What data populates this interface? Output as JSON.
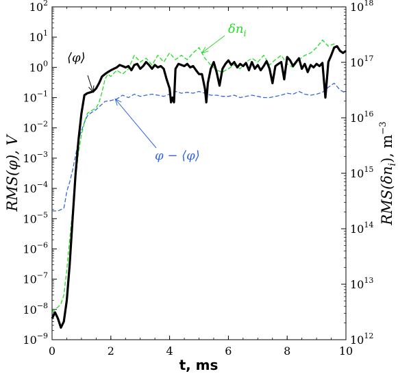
{
  "chart_data": {
    "type": "line",
    "xlabel": "t, ms",
    "ylabel_left": "RMS(φ), V",
    "ylabel_right": "RMS(δn",
    "ylabel_right_sub": "i",
    "ylabel_right_tail": "), m",
    "ylabel_right_unit_exp": "−3",
    "xlim": [
      0,
      10
    ],
    "ylim_left": [
      1e-09,
      100
    ],
    "ylim_right": [
      1000000000000.0,
      1e+18
    ],
    "y_scale": "log",
    "grid": false,
    "x_ticks": [
      "0",
      "2",
      "4",
      "6",
      "8",
      "10"
    ],
    "y_left_ticks": [
      {
        "base": "10",
        "exp": "2"
      },
      {
        "base": "10",
        "exp": "1"
      },
      {
        "base": "10",
        "exp": "0"
      },
      {
        "base": "10",
        "exp": "-1"
      },
      {
        "base": "10",
        "exp": "-2"
      },
      {
        "base": "10",
        "exp": "-3"
      },
      {
        "base": "10",
        "exp": "-4"
      },
      {
        "base": "10",
        "exp": "-5"
      },
      {
        "base": "10",
        "exp": "-6"
      },
      {
        "base": "10",
        "exp": "-7"
      },
      {
        "base": "10",
        "exp": "-8"
      },
      {
        "base": "10",
        "exp": "-9"
      }
    ],
    "y_right_ticks": [
      {
        "base": "10",
        "exp": "18"
      },
      {
        "base": "10",
        "exp": "17"
      },
      {
        "base": "10",
        "exp": "16"
      },
      {
        "base": "10",
        "exp": "15"
      },
      {
        "base": "10",
        "exp": "14"
      },
      {
        "base": "10",
        "exp": "13"
      },
      {
        "base": "10",
        "exp": "12"
      }
    ],
    "series": [
      {
        "name": "⟨φ⟩",
        "axis": "left",
        "color": "#000000",
        "style": "solid",
        "x": [
          0,
          0.1,
          0.2,
          0.3,
          0.4,
          0.5,
          0.6,
          0.7,
          0.8,
          0.9,
          1.0,
          1.1,
          1.2,
          1.3,
          1.4,
          1.5,
          1.6,
          1.7,
          1.8,
          1.9,
          2.0,
          2.1,
          2.2,
          2.3,
          2.4,
          2.5,
          2.6,
          2.7,
          2.8,
          2.9,
          3.0,
          3.1,
          3.2,
          3.3,
          3.4,
          3.5,
          3.6,
          3.7,
          3.8,
          3.9,
          4.0,
          4.05,
          4.1,
          4.15,
          4.2,
          4.3,
          4.4,
          4.5,
          4.6,
          4.7,
          4.8,
          4.9,
          5.0,
          5.1,
          5.2,
          5.25,
          5.3,
          5.4,
          5.5,
          5.6,
          5.7,
          5.8,
          5.9,
          6.0,
          6.1,
          6.2,
          6.3,
          6.4,
          6.5,
          6.6,
          6.7,
          6.8,
          6.9,
          7.0,
          7.1,
          7.2,
          7.3,
          7.4,
          7.5,
          7.6,
          7.7,
          7.8,
          7.9,
          8.0,
          8.1,
          8.2,
          8.3,
          8.4,
          8.5,
          8.6,
          8.7,
          8.8,
          8.9,
          9.0,
          9.1,
          9.2,
          9.3,
          9.4,
          9.5,
          9.6,
          9.7,
          9.8,
          9.9,
          10.0
        ],
        "y": [
          5e-09,
          8e-09,
          5e-09,
          2.5e-09,
          4e-09,
          2e-08,
          3e-07,
          1e-05,
          0.0003,
          0.004,
          0.03,
          0.12,
          0.14,
          0.15,
          0.16,
          0.2,
          0.3,
          0.5,
          0.6,
          0.7,
          0.8,
          0.9,
          1.0,
          1.2,
          1.1,
          1.0,
          1.1,
          0.8,
          1.2,
          1.3,
          0.9,
          1.1,
          1.5,
          1.2,
          0.9,
          1.2,
          1.0,
          1.1,
          0.9,
          0.4,
          0.2,
          0.07,
          0.1,
          0.07,
          0.9,
          1.3,
          1.2,
          1.1,
          1.3,
          1.0,
          1.1,
          0.8,
          0.6,
          0.6,
          0.2,
          0.07,
          0.3,
          0.9,
          1.5,
          0.7,
          0.25,
          0.9,
          1.3,
          1.7,
          1.2,
          1.5,
          1.0,
          1.3,
          1.1,
          1.4,
          0.8,
          1.5,
          0.9,
          1.2,
          0.8,
          1.1,
          1.6,
          0.9,
          0.3,
          1.1,
          1.3,
          1.5,
          0.4,
          2.2,
          1.7,
          1.1,
          1.5,
          2.0,
          0.9,
          1.3,
          0.7,
          1.2,
          1.0,
          1.3,
          1.1,
          1.4,
          0.1,
          1.5,
          2.5,
          4.5,
          5.0,
          3.5,
          3.0,
          3.5
        ]
      },
      {
        "name": "δn",
        "name_sub": "i",
        "axis": "left",
        "color": "#22dd22",
        "style": "dashed",
        "x": [
          0,
          0.1,
          0.2,
          0.3,
          0.4,
          0.5,
          0.6,
          0.7,
          0.8,
          0.9,
          1.0,
          1.1,
          1.2,
          1.3,
          1.4,
          1.5,
          1.6,
          1.7,
          1.8,
          1.9,
          2.0,
          2.2,
          2.4,
          2.6,
          2.8,
          3.0,
          3.2,
          3.4,
          3.6,
          3.8,
          4.0,
          4.2,
          4.4,
          4.6,
          4.8,
          5.0,
          5.2,
          5.4,
          5.6,
          5.8,
          6.0,
          6.2,
          6.4,
          6.6,
          6.8,
          7.0,
          7.2,
          7.4,
          7.6,
          7.8,
          8.0,
          8.2,
          8.4,
          8.6,
          8.8,
          9.0,
          9.2,
          9.4,
          9.6,
          9.8,
          10.0
        ],
        "y": [
          8e-09,
          1e-08,
          1.2e-08,
          1.5e-08,
          3e-08,
          2e-07,
          2e-06,
          2e-05,
          0.0002,
          0.0015,
          0.006,
          0.015,
          0.03,
          0.035,
          0.04,
          0.045,
          0.07,
          0.15,
          0.4,
          0.6,
          0.5,
          0.8,
          0.6,
          0.9,
          2.5,
          1.5,
          2.0,
          1.2,
          2.5,
          1.5,
          3.0,
          1.8,
          2.5,
          1.8,
          3.0,
          4.5,
          2.0,
          1.2,
          0.8,
          0.7,
          0.9,
          1.2,
          0.9,
          1.5,
          2.0,
          1.5,
          2.5,
          1.2,
          1.8,
          2.5,
          1.3,
          1.0,
          1.8,
          2.5,
          3.0,
          4.5,
          8.0,
          5.0,
          6.0,
          3.5,
          3.0
        ]
      },
      {
        "name": "φ − ⟨φ⟩",
        "axis": "left",
        "color": "#3366dd",
        "style": "dashed",
        "x": [
          0,
          0.2,
          0.4,
          0.45,
          0.5,
          0.6,
          0.7,
          0.8,
          0.9,
          1.0,
          1.1,
          1.2,
          1.3,
          1.4,
          1.5,
          1.6,
          1.7,
          1.8,
          2.0,
          2.2,
          2.4,
          2.6,
          2.8,
          3.0,
          3.2,
          3.4,
          3.6,
          3.8,
          4.0,
          4.2,
          4.4,
          4.6,
          4.8,
          5.0,
          5.2,
          5.4,
          5.6,
          5.8,
          6.0,
          6.2,
          6.4,
          6.6,
          6.8,
          7.0,
          7.2,
          7.4,
          7.6,
          7.8,
          8.0,
          8.2,
          8.4,
          8.6,
          8.8,
          9.0,
          9.2,
          9.4,
          9.6,
          9.8,
          10.0
        ],
        "y": [
          1.8e-05,
          1.8e-05,
          2.2e-05,
          4e-05,
          8e-05,
          0.00016,
          0.0004,
          0.0012,
          0.004,
          0.008,
          0.015,
          0.025,
          0.03,
          0.035,
          0.04,
          0.05,
          0.06,
          0.075,
          0.08,
          0.09,
          0.12,
          0.1,
          0.13,
          0.11,
          0.12,
          0.13,
          0.12,
          0.11,
          0.13,
          0.16,
          0.14,
          0.15,
          0.14,
          0.16,
          0.14,
          0.12,
          0.12,
          0.11,
          0.11,
          0.12,
          0.1,
          0.11,
          0.12,
          0.11,
          0.1,
          0.1,
          0.11,
          0.12,
          0.14,
          0.13,
          0.16,
          0.13,
          0.12,
          0.13,
          0.15,
          0.22,
          0.3,
          0.18,
          0.14
        ]
      }
    ],
    "annotations": [
      {
        "text": "⟨φ⟩",
        "color": "#000000",
        "arrow_tip": [
          1.4,
          0.15
        ]
      },
      {
        "text": "δn",
        "sub": "i",
        "color": "#22dd22",
        "arrow_tip": [
          5.1,
          3.0
        ]
      },
      {
        "text": "φ − ⟨φ⟩",
        "color": "#3366dd",
        "arrow_tip": [
          2.15,
          0.09
        ]
      }
    ]
  }
}
